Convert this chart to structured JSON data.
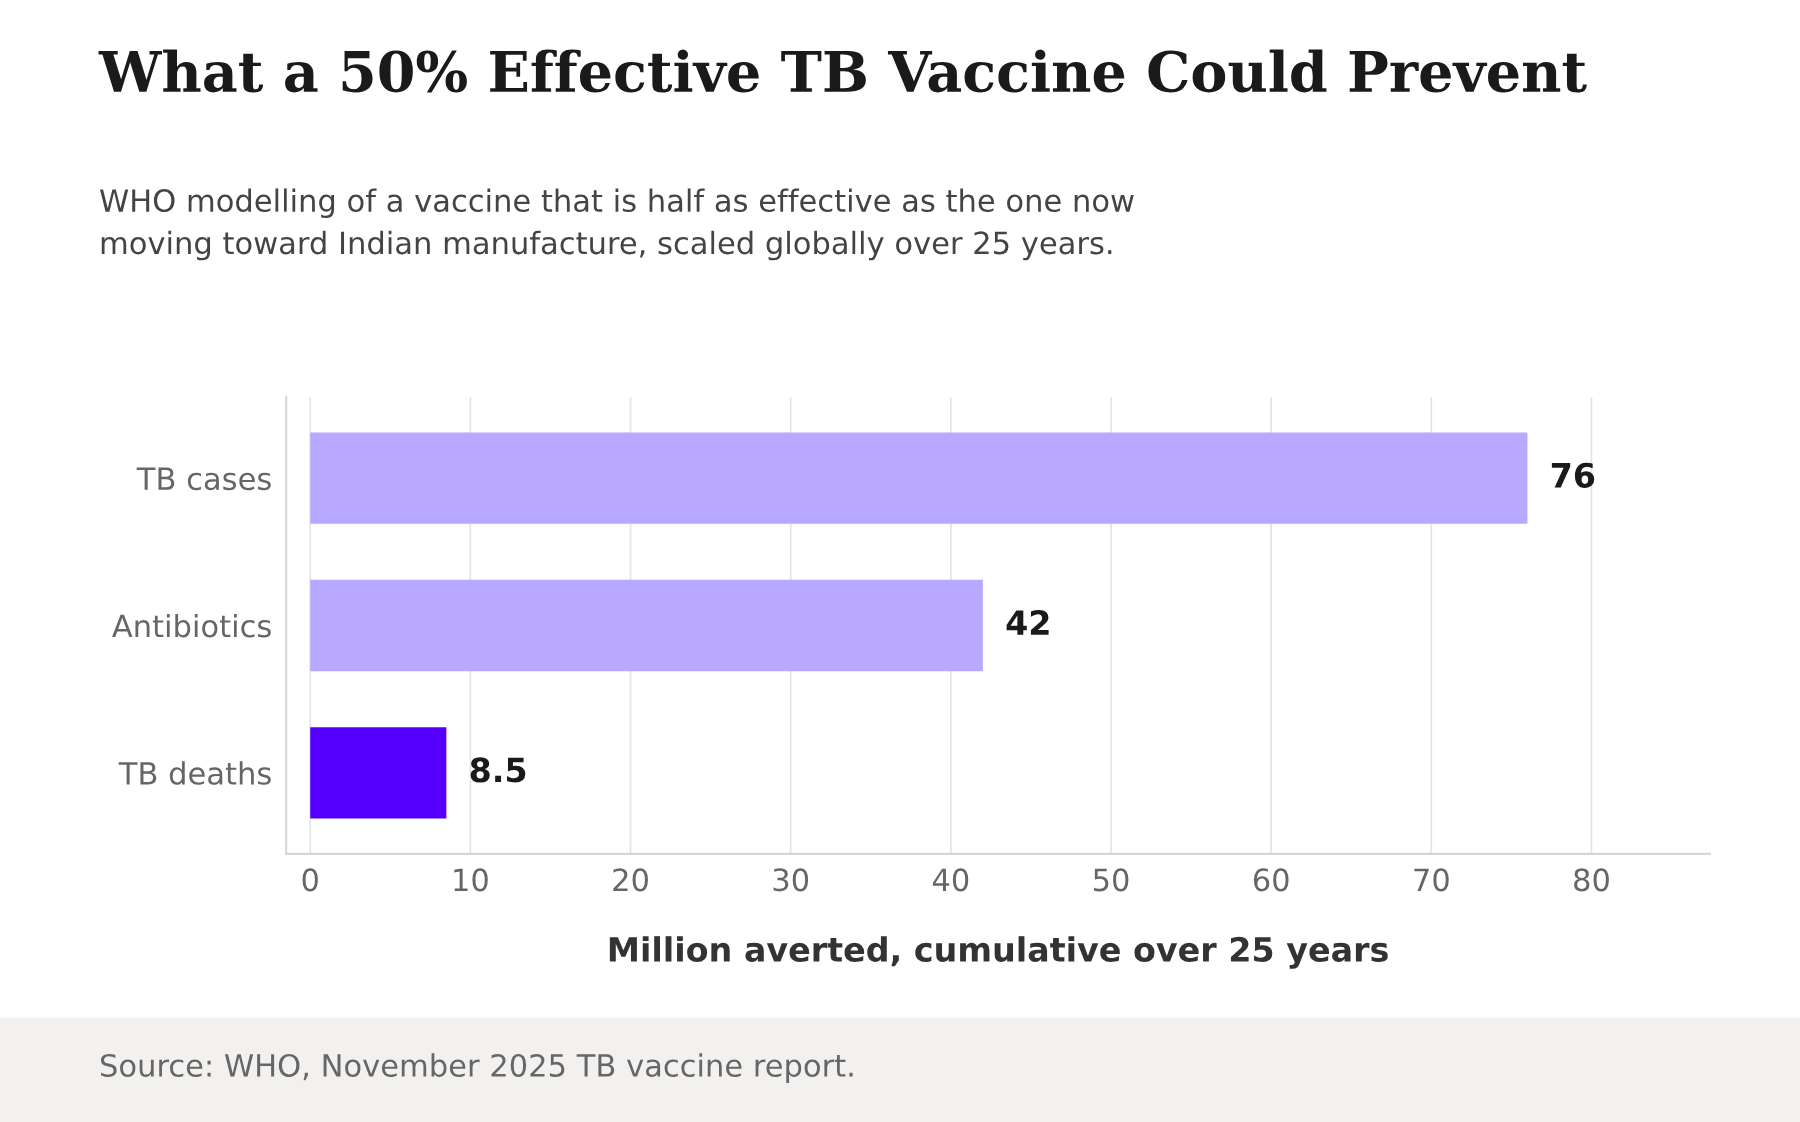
{
  "chart_data": {
    "type": "bar",
    "orientation": "horizontal",
    "title": "What a 50% Effective TB Vaccine Could Prevent",
    "subtitle": "WHO modelling of a vaccine that is half as effective as the one now\nmoving toward Indian manufacture, scaled globally over 25 years.",
    "categories": [
      "TB cases",
      "Antibiotics",
      "TB deaths"
    ],
    "values": [
      76,
      42,
      8.5
    ],
    "colors": [
      "#b8a8ff",
      "#b8a8ff",
      "#5500ff"
    ],
    "xlabel": "Million averted, cumulative over 25 years",
    "xlim": [
      -1.5,
      87.4
    ],
    "xticks": [
      0,
      10,
      20,
      30,
      40,
      50,
      60,
      70,
      80
    ],
    "grid": "x",
    "data_labels": true,
    "annotations": [
      "Source: WHO, November 2025 TB vaccine report."
    ]
  }
}
